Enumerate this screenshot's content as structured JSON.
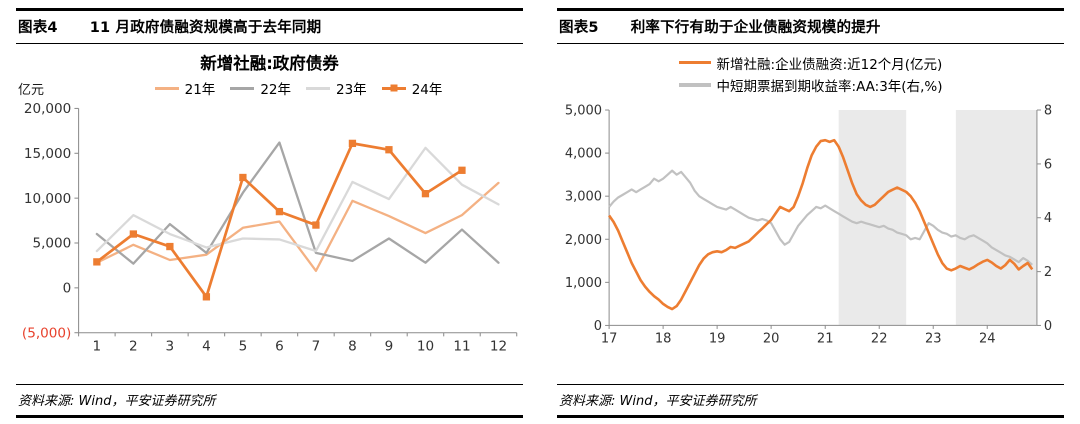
{
  "colors": {
    "orange": "#ED7D31",
    "light_orange": "#F4B183",
    "dark_gray": "#A6A6A6",
    "light_gray": "#D9D9D9",
    "yield_gray": "#C1C1C1",
    "band_gray": "#EAEAEA",
    "negative_red": "#E8422D",
    "axis_line": "#8C8C8C",
    "tick_text": "#333333"
  },
  "figure4": {
    "label": "图表4",
    "title": "11 月政府债融资规模高于去年同期",
    "source": "资料来源: Wind，平安证券研究所"
  },
  "figure5": {
    "label": "图表5",
    "title": "利率下行有助于企业债融资规模的提升",
    "source": "资料来源: Wind，平安证券研究所"
  },
  "chart_data": [
    {
      "type": "line",
      "title": "新增社融:政府债券",
      "unit_label": "亿元",
      "ylabel": "亿元",
      "categories": [
        1,
        2,
        3,
        4,
        5,
        6,
        7,
        8,
        9,
        10,
        11,
        12
      ],
      "ylim": [
        -5000,
        20000
      ],
      "ytick_step": 5000,
      "grid": false,
      "legend_position": "top",
      "series": [
        {
          "name": "21年",
          "color": "#F4B183",
          "width": 2.2,
          "values": [
            2800,
            4800,
            3100,
            3700,
            6700,
            7400,
            1900,
            9700,
            8000,
            6100,
            8100,
            11700
          ]
        },
        {
          "name": "22年",
          "color": "#A6A6A6",
          "width": 2.2,
          "values": [
            6000,
            2700,
            7100,
            3900,
            10600,
            16200,
            3900,
            3000,
            5500,
            2800,
            6500,
            2800
          ]
        },
        {
          "name": "23年",
          "color": "#D9D9D9",
          "width": 2.2,
          "values": [
            4100,
            8100,
            6000,
            4500,
            5500,
            5400,
            4100,
            11800,
            9900,
            15600,
            11500,
            9300
          ]
        },
        {
          "name": "24年",
          "color": "#ED7D31",
          "width": 2.6,
          "marker": "square",
          "values": [
            2900,
            6000,
            4600,
            -1000,
            12300,
            8500,
            7000,
            16100,
            15400,
            10500,
            13100
          ]
        }
      ]
    },
    {
      "type": "line",
      "title": "",
      "legend_position": "top",
      "xlim": [
        17,
        24.92
      ],
      "x_ticks": [
        17,
        18,
        19,
        20,
        21,
        22,
        23,
        24
      ],
      "left_ylim": [
        0,
        5000
      ],
      "left_ticks": [
        0,
        1000,
        2000,
        3000,
        4000,
        5000
      ],
      "right_ylim": [
        0,
        8
      ],
      "right_ticks": [
        0,
        2,
        4,
        6,
        8
      ],
      "bands": [
        [
          21.25,
          22.5
        ],
        [
          23.42,
          24.92
        ]
      ],
      "series": [
        {
          "name": "新增社融:企业债融资:近12个月(亿元)",
          "axis": "left",
          "color": "#ED7D31",
          "width": 2.6,
          "x_start": 17,
          "x_step": 0.0833333,
          "values": [
            2550,
            2400,
            2200,
            1950,
            1700,
            1450,
            1250,
            1050,
            900,
            780,
            680,
            600,
            500,
            430,
            380,
            450,
            600,
            800,
            1000,
            1200,
            1400,
            1550,
            1650,
            1700,
            1720,
            1700,
            1750,
            1820,
            1800,
            1850,
            1900,
            1950,
            2050,
            2150,
            2250,
            2350,
            2450,
            2600,
            2750,
            2700,
            2650,
            2750,
            3000,
            3300,
            3650,
            3950,
            4150,
            4280,
            4300,
            4260,
            4300,
            4150,
            3900,
            3600,
            3300,
            3050,
            2900,
            2800,
            2750,
            2800,
            2900,
            3000,
            3100,
            3150,
            3200,
            3150,
            3100,
            3000,
            2850,
            2650,
            2400,
            2150,
            1900,
            1650,
            1450,
            1320,
            1280,
            1320,
            1380,
            1340,
            1300,
            1350,
            1420,
            1480,
            1520,
            1460,
            1380,
            1320,
            1400,
            1520,
            1430,
            1300,
            1380,
            1450,
            1300
          ]
        },
        {
          "name": "中短期票据到期收益率:AA:3年(右,%)",
          "axis": "right",
          "color": "#C1C1C1",
          "width": 2.2,
          "x_start": 17,
          "x_step": 0.0833333,
          "values": [
            4.4,
            4.6,
            4.75,
            4.85,
            4.95,
            5.05,
            4.95,
            5.05,
            5.15,
            5.25,
            5.45,
            5.35,
            5.45,
            5.6,
            5.75,
            5.6,
            5.7,
            5.5,
            5.3,
            5.0,
            4.8,
            4.7,
            4.6,
            4.5,
            4.4,
            4.35,
            4.3,
            4.4,
            4.3,
            4.2,
            4.1,
            4.0,
            3.95,
            3.9,
            3.95,
            3.9,
            3.8,
            3.5,
            3.2,
            3.0,
            3.1,
            3.4,
            3.7,
            3.9,
            4.1,
            4.25,
            4.4,
            4.35,
            4.45,
            4.35,
            4.25,
            4.15,
            4.05,
            3.95,
            3.85,
            3.8,
            3.85,
            3.8,
            3.75,
            3.7,
            3.65,
            3.7,
            3.6,
            3.55,
            3.45,
            3.4,
            3.35,
            3.2,
            3.25,
            3.2,
            3.5,
            3.8,
            3.7,
            3.55,
            3.45,
            3.4,
            3.3,
            3.35,
            3.25,
            3.2,
            3.3,
            3.35,
            3.25,
            3.15,
            3.05,
            2.9,
            2.8,
            2.7,
            2.6,
            2.55,
            2.45,
            2.35,
            2.5,
            2.4,
            2.25
          ]
        }
      ]
    }
  ]
}
